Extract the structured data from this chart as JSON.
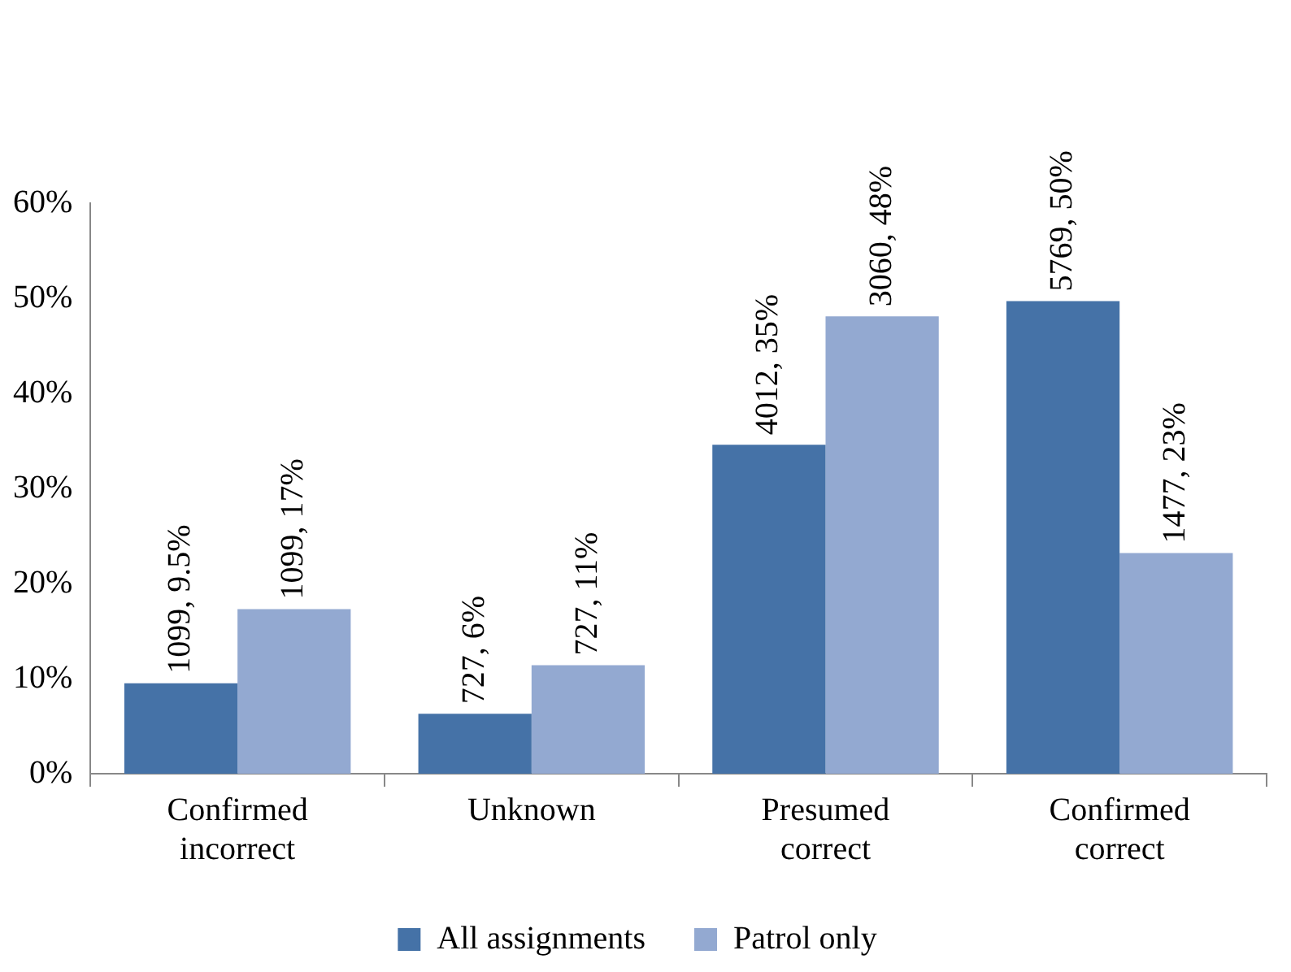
{
  "chart_data": {
    "type": "bar",
    "categories": [
      "Confirmed incorrect",
      "Unknown",
      "Presumed correct",
      "Confirmed correct"
    ],
    "series": [
      {
        "name": "All assignments",
        "color": "#4572a7",
        "values": [
          9.5,
          6.3,
          34.6,
          49.7
        ],
        "value_labels": [
          "1099, 9.5%",
          "727, 6%",
          "4012, 35%",
          "5769, 50%"
        ]
      },
      {
        "name": "Patrol only",
        "color": "#93a9d1",
        "values": [
          17.3,
          11.4,
          48.1,
          23.2
        ],
        "value_labels": [
          "1099, 17%",
          "727, 11%",
          "3060, 48%",
          "1477, 23%"
        ]
      }
    ],
    "ylim": [
      0,
      60
    ],
    "yticks": [
      {
        "value": 0,
        "label": "0%"
      },
      {
        "value": 10,
        "label": "10%"
      },
      {
        "value": 20,
        "label": "20%"
      },
      {
        "value": 30,
        "label": "30%"
      },
      {
        "value": 40,
        "label": "40%"
      },
      {
        "value": 50,
        "label": "50%"
      },
      {
        "value": 60,
        "label": "60%"
      }
    ],
    "grid": false,
    "legend": "bottom"
  }
}
